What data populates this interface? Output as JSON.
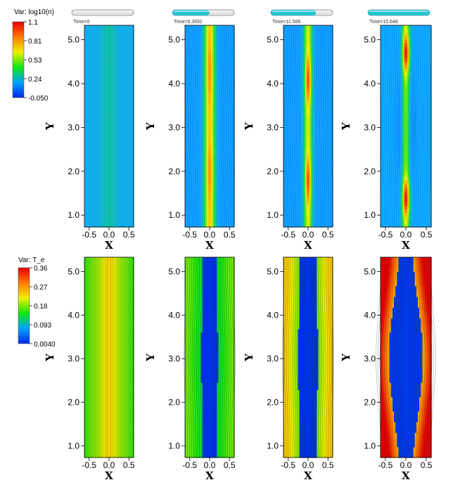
{
  "legends": [
    {
      "var_label": "Var: log10(n)",
      "ticks": [
        "1.1",
        "0.81",
        "0.53",
        "0.24",
        "-0.050"
      ]
    },
    {
      "var_label": "Var: T_e",
      "ticks": [
        "0.36",
        "0.27",
        "0.18",
        "0.093",
        "0.0040"
      ]
    }
  ],
  "colors": {
    "bar_fill": "#22c4d2",
    "bar_empty": "#e4e4e4",
    "colormap": [
      "#0028e6",
      "#00a2ff",
      "#12e612",
      "#f0f000",
      "#ff7800",
      "#e60000"
    ]
  },
  "chart_data": [
    {
      "type": "heatmap",
      "field": "log10(n)",
      "time_label": "Time=0",
      "progress": 0.0,
      "xlabel": "X",
      "ylabel": "Y",
      "xticks": [
        "-0.5",
        "0.0",
        "0.5"
      ],
      "yticks": [
        "1.0",
        "2.0",
        "3.0",
        "4.0",
        "5.0"
      ],
      "xlim": [
        -0.62,
        0.62
      ],
      "ylim": [
        0.73,
        5.33
      ],
      "range": [
        -0.05,
        1.1
      ]
    },
    {
      "type": "heatmap",
      "field": "log10(n)",
      "time_label": "Time=9.3691",
      "progress": 0.6,
      "xlabel": "X",
      "ylabel": "Y",
      "xticks": [
        "-0.5",
        "0.0",
        "0.5"
      ],
      "yticks": [
        "1.0",
        "2.0",
        "3.0",
        "4.0",
        "5.0"
      ],
      "xlim": [
        -0.62,
        0.62
      ],
      "ylim": [
        0.73,
        5.33
      ],
      "range": [
        -0.05,
        1.1
      ]
    },
    {
      "type": "heatmap",
      "field": "log10(n)",
      "time_label": "Time=11.566",
      "progress": 0.73,
      "xlabel": "X",
      "ylabel": "Y",
      "xticks": [
        "-0.5",
        "0.0",
        "0.5"
      ],
      "yticks": [
        "1.0",
        "2.0",
        "3.0",
        "4.0",
        "5.0"
      ],
      "xlim": [
        -0.62,
        0.62
      ],
      "ylim": [
        0.73,
        5.33
      ],
      "range": [
        -0.05,
        1.1
      ]
    },
    {
      "type": "heatmap",
      "field": "log10(n)",
      "time_label": "Time=15.648",
      "progress": 1.0,
      "xlabel": "X",
      "ylabel": "Y",
      "xticks": [
        "-0.5",
        "0.0",
        "0.5"
      ],
      "yticks": [
        "1.0",
        "2.0",
        "3.0",
        "4.0",
        "5.0"
      ],
      "xlim": [
        -0.62,
        0.62
      ],
      "ylim": [
        0.73,
        5.33
      ],
      "range": [
        -0.05,
        1.1
      ]
    },
    {
      "type": "heatmap",
      "field": "T_e",
      "xlabel": "X",
      "ylabel": "Y",
      "xticks": [
        "-0.5",
        "0.0",
        "0.5"
      ],
      "yticks": [
        "1.0",
        "2.0",
        "3.0",
        "4.0",
        "5.0"
      ],
      "xlim": [
        -0.62,
        0.62
      ],
      "ylim": [
        0.73,
        5.33
      ],
      "range": [
        0.004,
        0.36
      ]
    },
    {
      "type": "heatmap",
      "field": "T_e",
      "xlabel": "X",
      "ylabel": "Y",
      "xticks": [
        "-0.5",
        "0.0",
        "0.5"
      ],
      "yticks": [
        "1.0",
        "2.0",
        "3.0",
        "4.0",
        "5.0"
      ],
      "xlim": [
        -0.62,
        0.62
      ],
      "ylim": [
        0.73,
        5.33
      ],
      "range": [
        0.004,
        0.36
      ]
    },
    {
      "type": "heatmap",
      "field": "T_e",
      "xlabel": "X",
      "ylabel": "Y",
      "xticks": [
        "-0.5",
        "0.0",
        "0.5"
      ],
      "yticks": [
        "1.0",
        "2.0",
        "3.0",
        "4.0",
        "5.0"
      ],
      "xlim": [
        -0.62,
        0.62
      ],
      "ylim": [
        0.73,
        5.33
      ],
      "range": [
        0.004,
        0.36
      ]
    },
    {
      "type": "heatmap",
      "field": "T_e",
      "xlabel": "X",
      "ylabel": "Y",
      "xticks": [
        "-0.5",
        "0.0",
        "0.5"
      ],
      "yticks": [
        "1.0",
        "2.0",
        "3.0",
        "4.0",
        "5.0"
      ],
      "xlim": [
        -0.62,
        0.62
      ],
      "ylim": [
        0.73,
        5.33
      ],
      "range": [
        0.004,
        0.36
      ]
    }
  ]
}
